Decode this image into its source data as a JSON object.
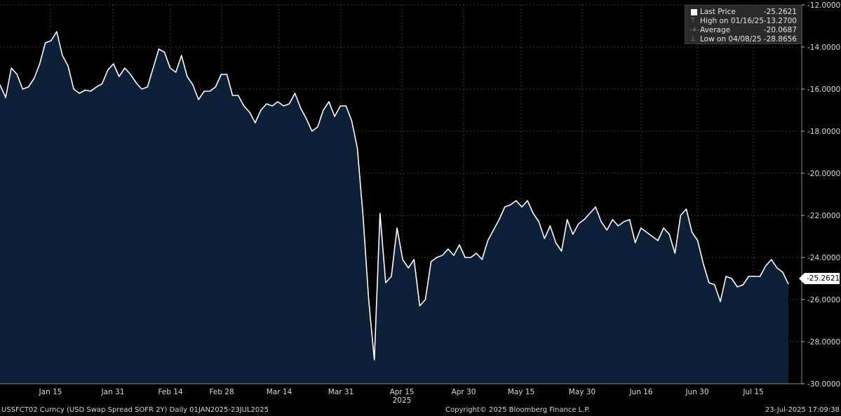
{
  "chart_data": {
    "type": "area",
    "ylim": [
      -30,
      -12
    ],
    "y_ticks": [
      "-12.0000",
      "-14.0000",
      "-16.0000",
      "-18.0000",
      "-20.0000",
      "-22.0000",
      "-24.0000",
      "-26.0000",
      "-28.0000",
      "-30.0000"
    ],
    "x_ticks": [
      "Jan 15",
      "Jan 31",
      "Feb 14",
      "Feb 28",
      "Mar 14",
      "Mar 31",
      "Apr 15",
      "Apr 30",
      "May 15",
      "May 30",
      "Jun 16",
      "Jun 30",
      "Jul 15"
    ],
    "x_year_label": "2025",
    "grid": true,
    "legend_position": "top-right",
    "series": [
      {
        "name": "Last Price",
        "values": [
          -15.8,
          -16.4,
          -15.0,
          -15.3,
          -16.0,
          -15.9,
          -15.5,
          -14.8,
          -13.8,
          -13.7,
          -13.27,
          -14.4,
          -14.9,
          -16.0,
          -16.2,
          -16.05,
          -16.1,
          -15.9,
          -15.75,
          -15.1,
          -14.8,
          -15.4,
          -15.0,
          -15.3,
          -15.7,
          -16.0,
          -15.9,
          -15.0,
          -14.1,
          -14.25,
          -15.0,
          -15.2,
          -14.4,
          -15.4,
          -15.8,
          -16.5,
          -16.1,
          -16.1,
          -15.9,
          -15.3,
          -15.3,
          -16.3,
          -16.3,
          -16.8,
          -17.1,
          -17.6,
          -17.0,
          -16.7,
          -16.8,
          -16.6,
          -16.8,
          -16.7,
          -16.2,
          -16.9,
          -17.4,
          -18.0,
          -17.8,
          -17.0,
          -16.6,
          -17.3,
          -16.8,
          -16.8,
          -17.5,
          -18.8,
          -22.0,
          -26.0,
          -28.8656,
          -21.9,
          -25.2,
          -24.9,
          -22.6,
          -24.1,
          -24.5,
          -24.1,
          -26.3,
          -26.0,
          -24.2,
          -24.0,
          -23.9,
          -23.6,
          -23.9,
          -23.4,
          -24.0,
          -24.0,
          -23.8,
          -24.1,
          -23.2,
          -22.7,
          -22.2,
          -21.6,
          -21.5,
          -21.3,
          -21.6,
          -21.3,
          -21.9,
          -22.3,
          -23.1,
          -22.5,
          -23.3,
          -23.7,
          -22.2,
          -22.9,
          -22.4,
          -22.2,
          -21.9,
          -21.6,
          -22.3,
          -22.7,
          -22.2,
          -22.5,
          -22.3,
          -22.2,
          -23.3,
          -22.6,
          -22.8,
          -23.0,
          -23.2,
          -22.6,
          -22.9,
          -23.8,
          -22.0,
          -21.7,
          -22.8,
          -23.2,
          -24.3,
          -25.2,
          -25.3,
          -26.1,
          -24.9,
          -25.0,
          -25.4,
          -25.3,
          -24.9,
          -24.9,
          -24.9,
          -24.4,
          -24.1,
          -24.5,
          -24.7,
          -25.2621
        ]
      }
    ],
    "legend": {
      "last_price": {
        "label": "Last Price",
        "value": "-25.2621"
      },
      "high": {
        "label": "High on 01/16/25",
        "value": "-13.2700"
      },
      "average": {
        "label": "Average",
        "value": "-20.0687"
      },
      "low": {
        "label": "Low on 04/08/25",
        "value": "-28.8656"
      }
    },
    "last_value_label": "-25.2621"
  },
  "colors": {
    "background": "#000000",
    "area_fill": "#0e1f38",
    "line": "#ffffff",
    "grid": "#3a3a3a",
    "axis_text": "#d9d9d9"
  },
  "footer": {
    "left": "USSFCT02 Curncy (USD Swap Spread SOFR 2Y)  Daily 01JAN2025-23JUL2025",
    "center": "Copyright© 2025 Bloomberg Finance L.P.",
    "right": "23-Jul-2025 17:09:38"
  }
}
